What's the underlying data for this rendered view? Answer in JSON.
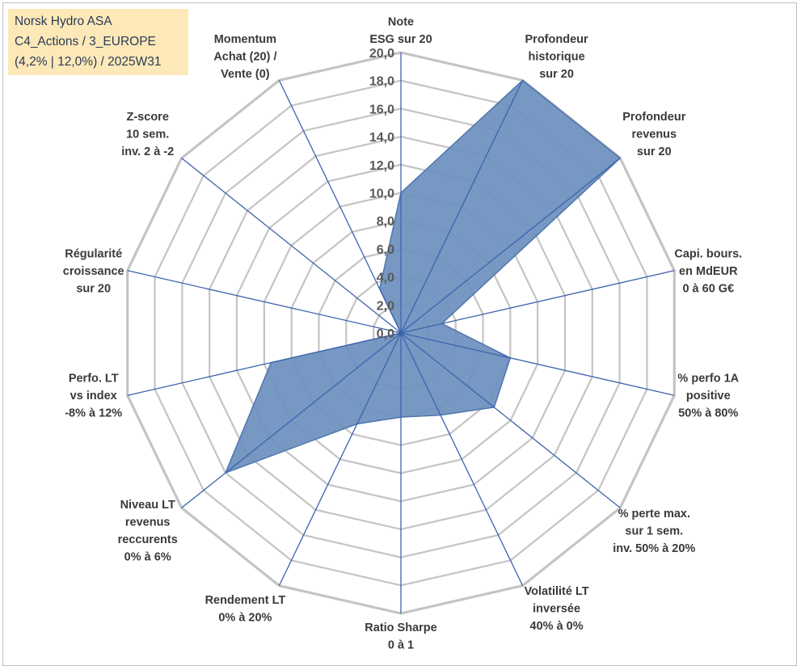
{
  "info": {
    "line1": "Norsk Hydro ASA",
    "line2": "C4_Actions / 3_EUROPE",
    "line3": "(4,2% | 12,0%) / 2025W31"
  },
  "chart_data": {
    "type": "radar",
    "range": [
      0,
      20
    ],
    "ticks": [
      "0,0",
      "2,0",
      "4,0",
      "6,0",
      "8,0",
      "10,0",
      "12,0",
      "14,0",
      "16,0",
      "18,0",
      "20,0"
    ],
    "grid": true,
    "axes": [
      {
        "label": [
          "Note",
          "ESG sur 20"
        ],
        "value": 10.0
      },
      {
        "label": [
          "Profondeur",
          "historique",
          "sur 20"
        ],
        "value": 20.0
      },
      {
        "label": [
          "Profondeur",
          "revenus",
          "sur 20"
        ],
        "value": 20.0
      },
      {
        "label": [
          "Capi. bours.",
          "en MdEUR",
          "0 à 60 G€"
        ],
        "value": 3.0
      },
      {
        "label": [
          "% perfo 1A",
          "positive",
          "50% à 80%"
        ],
        "value": 8.0
      },
      {
        "label": [
          "% perte max.",
          "sur 1 sem.",
          "inv. 50% à 20%"
        ],
        "value": 8.5
      },
      {
        "label": [
          "Volatilité LT",
          "inversée",
          "40% à 0%"
        ],
        "value": 6.5
      },
      {
        "label": [
          "Ratio Sharpe",
          "0 à 1"
        ],
        "value": 6.0
      },
      {
        "label": [
          "Rendement LT",
          "0% à 20%"
        ],
        "value": 7.2
      },
      {
        "label": [
          "Niveau LT",
          "revenus",
          "reccurents",
          "0% à 6%"
        ],
        "value": 16.0
      },
      {
        "label": [
          "Perfo. LT",
          "vs index",
          "-8% à 12%"
        ],
        "value": 9.5
      },
      {
        "label": [
          "Régularité",
          "croissance",
          "sur 20"
        ],
        "value": 0.0
      },
      {
        "label": [
          "Z-score",
          "10 sem.",
          "inv. 2 à -2"
        ],
        "value": 0.0
      },
      {
        "label": [
          "Momentum",
          "Achat (20) /",
          "Vente (0)"
        ],
        "value": 3.5
      }
    ],
    "colors": {
      "fill": "#6b8fbe",
      "stroke": "#4f76ad",
      "spoke": "#3d63ad",
      "grid": "#c4c4c4"
    }
  }
}
